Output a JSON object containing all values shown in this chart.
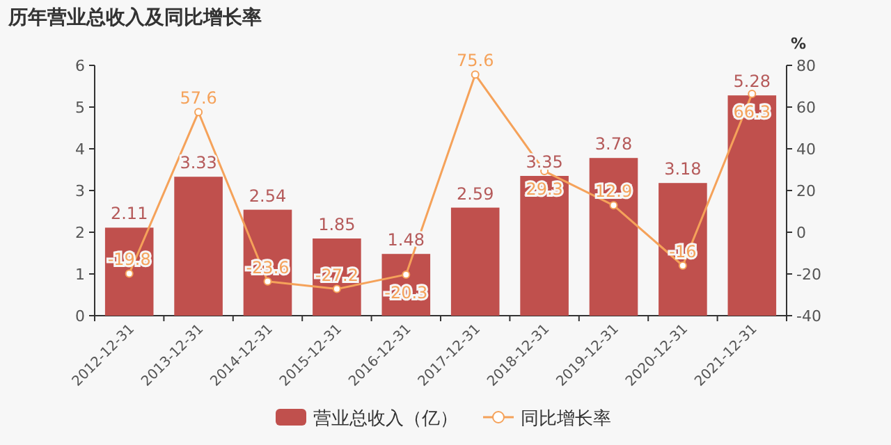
{
  "chart_data": {
    "type": "bar",
    "title": "历年营业总收入及同比增长率",
    "categories": [
      "2012-12-31",
      "2013-12-31",
      "2014-12-31",
      "2015-12-31",
      "2016-12-31",
      "2017-12-31",
      "2018-12-31",
      "2019-12-31",
      "2020-12-31",
      "2021-12-31"
    ],
    "series": [
      {
        "name": "营业总收入（亿）",
        "color": "#c0504d",
        "values": [
          2.11,
          3.33,
          2.54,
          1.85,
          1.48,
          2.59,
          3.35,
          3.78,
          3.18,
          5.28
        ]
      },
      {
        "name": "同比增长率",
        "type": "line",
        "axis": "y2",
        "color": "#f5a25a",
        "marker": "circle",
        "values": [
          -19.8,
          57.6,
          -23.6,
          -27.2,
          -20.3,
          75.6,
          29.3,
          12.9,
          -16,
          66.3
        ]
      }
    ],
    "ylim": [
      0,
      6
    ],
    "yticks": [
      0,
      1,
      2,
      3,
      4,
      5,
      6
    ],
    "y2lim": [
      -40,
      80
    ],
    "y2ticks": [
      -40,
      -20,
      0,
      20,
      40,
      60,
      80
    ],
    "y2label": "%",
    "data_labels": true,
    "legend": "bottom",
    "grid": false
  }
}
